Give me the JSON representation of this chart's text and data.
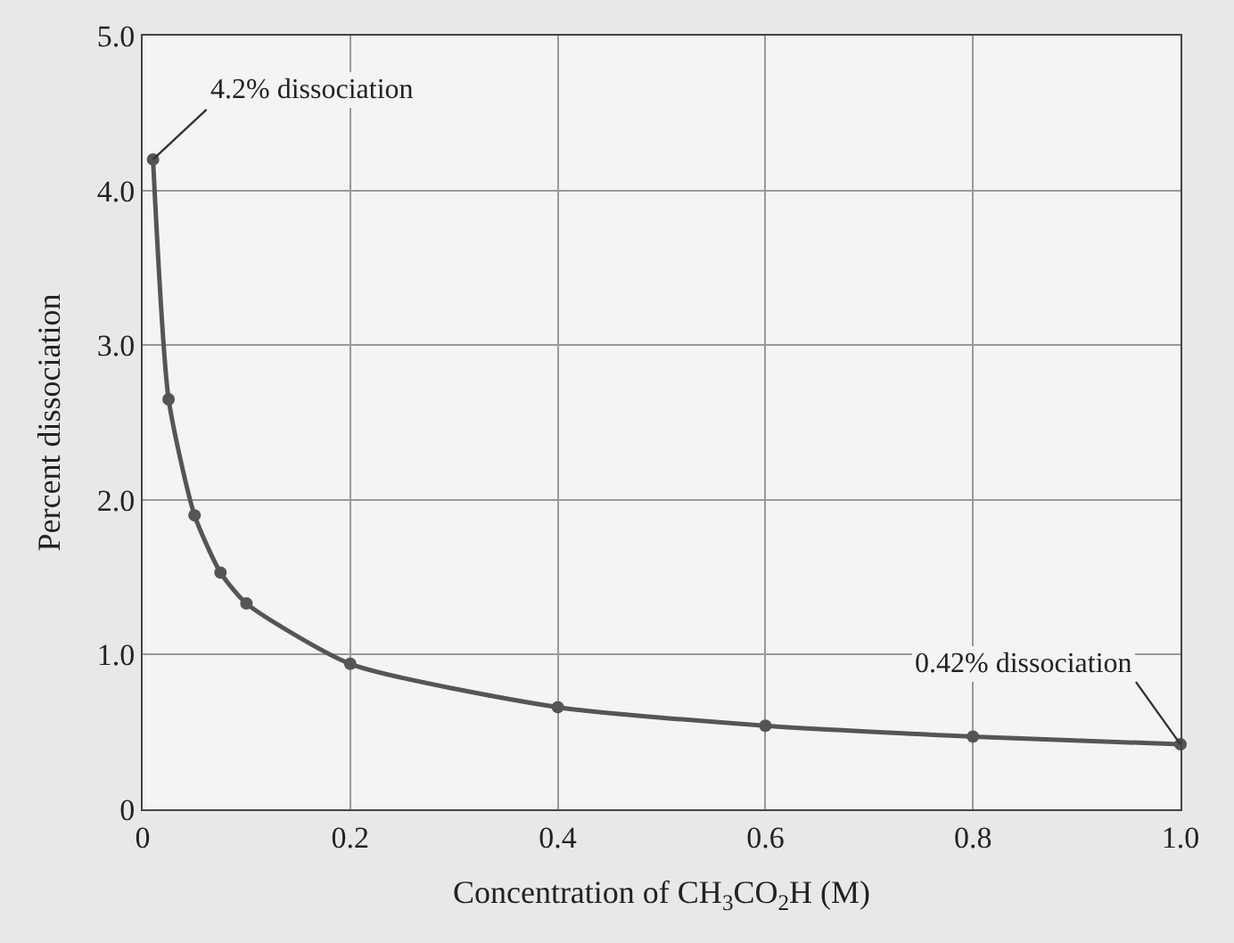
{
  "chart_data": {
    "type": "line",
    "xlabel": "Concentration of CH$_{3}$CO$_{2}$H (M)",
    "ylabel": "Percent dissociation",
    "x": [
      0.01,
      0.025,
      0.05,
      0.075,
      0.1,
      0.2,
      0.4,
      0.6,
      0.8,
      1.0
    ],
    "series": [
      {
        "color": "#555555",
        "values": [
          4.2,
          2.65,
          1.9,
          1.53,
          1.33,
          0.94,
          0.66,
          0.54,
          0.47,
          0.42
        ]
      }
    ],
    "xlim": [
      0,
      1.0
    ],
    "xticks": [
      0,
      0.2,
      0.4,
      0.6,
      0.8,
      {
        "value": 1.0,
        "label": "1.0"
      }
    ],
    "ylim": [
      0,
      5.0
    ],
    "yticks": [
      0,
      {
        "value": 1.0,
        "label": "1.0"
      },
      {
        "value": 2.0,
        "label": "2.0"
      },
      {
        "value": 3.0,
        "label": "3.0"
      },
      {
        "value": 4.0,
        "label": "4.0"
      },
      {
        "value": 5.0,
        "label": "5.0"
      }
    ],
    "annotations": [
      {
        "text": "4.2% dissociation",
        "x": 0.01,
        "y": 4.2
      },
      {
        "text": "0.42% dissociation",
        "x": 1.0,
        "y": 0.42
      }
    ],
    "grid": true,
    "marker": "circle",
    "line_style": "solid"
  }
}
